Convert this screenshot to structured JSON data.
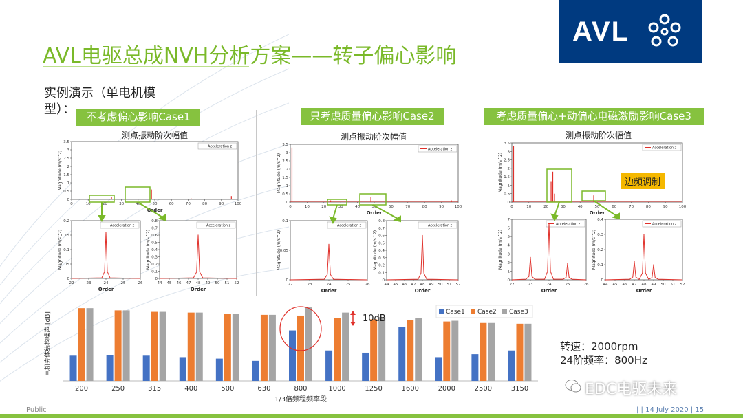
{
  "slide": {
    "title": "AVL电驱总成NVH分析方案——转子偏心影响",
    "subtitle": "实例演示（单电机模型）：",
    "logo_text": "AVL",
    "footer_left": "Public",
    "footer_right": "|  | 14 July 2020 | 15",
    "watermark": "EDC电驱未来"
  },
  "cases": [
    {
      "label": "不考虑偏心影响Case1",
      "panel_title": "测点振动阶次幅值"
    },
    {
      "label": "只考虑质量偏心影响Case2",
      "panel_title": "测点振动阶次幅值"
    },
    {
      "label": "考虑质量偏心+动偏心电磁激励影响Case3",
      "panel_title": "测点振动阶次幅值"
    }
  ],
  "annotations": {
    "sideband": "边频调制",
    "ten_db": "10dB",
    "speed": "转速：2000rpm",
    "order24": "24阶频率：800Hz"
  },
  "colors": {
    "title_green": "#7ab929",
    "label_green": "#86c23f",
    "avl_blue": "#003a80",
    "case1": "#4472c4",
    "case2": "#ed7d31",
    "case3": "#a5a5a5",
    "spectrum_red": "#e0302a"
  },
  "chart_data": [
    {
      "type": "line",
      "panel": "case1-main",
      "xlabel": "Order",
      "ylabel": "Magnitude (m/s^2)",
      "legend": [
        "Acceleration z"
      ],
      "xlim": [
        0,
        100
      ],
      "ylim": [
        0,
        3.5
      ],
      "x_ticks": [
        "0",
        "10",
        "20",
        "30",
        "40",
        "50",
        "60",
        "70",
        "80",
        "90",
        "100"
      ],
      "y_ticks": [
        "0",
        "0.5",
        "1",
        "1.5",
        "2",
        "2.5",
        "3",
        "3.5"
      ],
      "peaks": [
        [
          24,
          0.15
        ],
        [
          48,
          0.6
        ],
        [
          72,
          0.05
        ],
        [
          96,
          0.2
        ]
      ]
    },
    {
      "type": "line",
      "panel": "case1-zoom-24",
      "xlabel": "Order",
      "ylabel": "Magnitude (m/s^2)",
      "legend": [
        "Acceleration z"
      ],
      "xlim": [
        22,
        26
      ],
      "ylim": [
        0,
        0.2
      ],
      "x_ticks": [
        "22",
        "23",
        "24",
        "25",
        "26"
      ],
      "y_ticks": [
        "0",
        "0.05",
        "0.1",
        "0.15",
        "0.2"
      ],
      "peaks": [
        [
          24,
          0.16
        ]
      ]
    },
    {
      "type": "line",
      "panel": "case1-zoom-48",
      "xlabel": "Order",
      "ylabel": "Magnitude (m/s^2)",
      "legend": [
        "Acceleration z"
      ],
      "xlim": [
        44,
        52
      ],
      "ylim": [
        0,
        0.8
      ],
      "x_ticks": [
        "44",
        "45",
        "46",
        "47",
        "48",
        "49",
        "50",
        "51",
        "52"
      ],
      "y_ticks": [
        "0",
        "0.1",
        "0.2",
        "0.3",
        "0.4",
        "0.5",
        "0.6",
        "0.7",
        "0.8"
      ],
      "peaks": [
        [
          48,
          0.6
        ]
      ]
    },
    {
      "type": "line",
      "panel": "case2-main",
      "xlabel": "Order",
      "ylabel": "Magnitude (m/s^2)",
      "legend": [
        "Acceleration z"
      ],
      "xlim": [
        0,
        100
      ],
      "ylim": [
        0,
        3.5
      ],
      "x_ticks": [
        "0",
        "10",
        "20",
        "30",
        "40",
        "50",
        "60",
        "70",
        "80",
        "90",
        "100"
      ],
      "y_ticks": [
        "0",
        "0.5",
        "1",
        "1.5",
        "2",
        "2.5",
        "3",
        "3.5"
      ],
      "peaks": [
        [
          1,
          3.3
        ],
        [
          24,
          0.1
        ],
        [
          48,
          0.3
        ],
        [
          96,
          0.1
        ]
      ]
    },
    {
      "type": "line",
      "panel": "case2-zoom-24",
      "xlabel": "Order",
      "ylabel": "Magnitude (m/s^2)",
      "legend": [
        "Acceleration z"
      ],
      "xlim": [
        22,
        26
      ],
      "ylim": [
        0,
        0.1
      ],
      "x_ticks": [
        "22",
        "23",
        "24",
        "25",
        "26"
      ],
      "y_ticks": [
        "0",
        "0.05",
        "0.1"
      ],
      "peaks": [
        [
          24,
          0.06
        ]
      ]
    },
    {
      "type": "line",
      "panel": "case2-zoom-48",
      "xlabel": "Order",
      "ylabel": "Magnitude (m/s^2)",
      "legend": [
        "Acceleration z"
      ],
      "xlim": [
        44,
        52
      ],
      "ylim": [
        0,
        0.8
      ],
      "x_ticks": [
        "44",
        "45",
        "46",
        "47",
        "48",
        "49",
        "50",
        "51",
        "52"
      ],
      "y_ticks": [
        "0",
        "0.1",
        "0.2",
        "0.3",
        "0.4",
        "0.5",
        "0.6",
        "0.7",
        "0.8"
      ],
      "peaks": [
        [
          48,
          0.6
        ]
      ]
    },
    {
      "type": "line",
      "panel": "case3-main",
      "xlabel": "Order",
      "ylabel": "Magnitude (m/s^2)",
      "legend": [
        "Acceleration z"
      ],
      "xlim": [
        0,
        100
      ],
      "ylim": [
        0,
        3.5
      ],
      "x_ticks": [
        "0",
        "10",
        "20",
        "30",
        "40",
        "50",
        "60",
        "70",
        "80",
        "90",
        "100"
      ],
      "y_ticks": [
        "0",
        "0.5",
        "1",
        "1.5",
        "2",
        "2.5",
        "3",
        "3.5"
      ],
      "peaks": [
        [
          1,
          3.3
        ],
        [
          23,
          1.2
        ],
        [
          24,
          1.8
        ],
        [
          25,
          0.5
        ],
        [
          48,
          0.4
        ]
      ]
    },
    {
      "type": "line",
      "panel": "case3-zoom-24",
      "xlabel": "Order",
      "ylabel": "Magnitude (m/s^2)",
      "legend": [
        "Acceleration z"
      ],
      "xlim": [
        22,
        26
      ],
      "ylim": [
        0,
        7
      ],
      "x_ticks": [
        "22",
        "23",
        "24",
        "25",
        "26"
      ],
      "y_ticks": [
        "0",
        "1",
        "2",
        "3",
        "4",
        "5",
        "6",
        "7"
      ],
      "peaks": [
        [
          23,
          2.6
        ],
        [
          24,
          6.5
        ],
        [
          25,
          1.9
        ]
      ]
    },
    {
      "type": "line",
      "panel": "case3-zoom-48",
      "xlabel": "Order",
      "ylabel": "Magnitude (m/s^2)",
      "legend": [
        "Acceleration z"
      ],
      "xlim": [
        44,
        52
      ],
      "ylim": [
        0,
        0.4
      ],
      "x_ticks": [
        "44",
        "45",
        "46",
        "47",
        "48",
        "49",
        "50",
        "51",
        "52"
      ],
      "y_ticks": [
        "0",
        "0.1",
        "0.2",
        "0.3",
        "0.4"
      ],
      "peaks": [
        [
          47,
          0.12
        ],
        [
          48,
          0.3
        ],
        [
          49,
          0.1
        ]
      ]
    },
    {
      "type": "bar",
      "panel": "third-octave",
      "xlabel": "1/3倍频程频率段",
      "ylabel": "电机壳体结构噪声 [dB]",
      "categories": [
        "200",
        "250",
        "315",
        "400",
        "500",
        "630",
        "800",
        "1000",
        "1250",
        "1600",
        "2000",
        "2500",
        "3150"
      ],
      "series": [
        {
          "name": "Case1",
          "values": [
            34,
            35,
            34,
            32,
            30,
            27,
            68,
            41,
            38,
            73,
            32,
            36,
            41
          ]
        },
        {
          "name": "Case2",
          "values": [
            98,
            95,
            93,
            92,
            90,
            89,
            88,
            85,
            83,
            82,
            80,
            78,
            77
          ]
        },
        {
          "name": "Case3",
          "values": [
            98,
            95,
            93,
            92,
            90,
            89,
            99,
            92,
            86,
            85,
            81,
            78,
            77
          ]
        }
      ],
      "ylim": [
        0,
        100
      ]
    }
  ]
}
